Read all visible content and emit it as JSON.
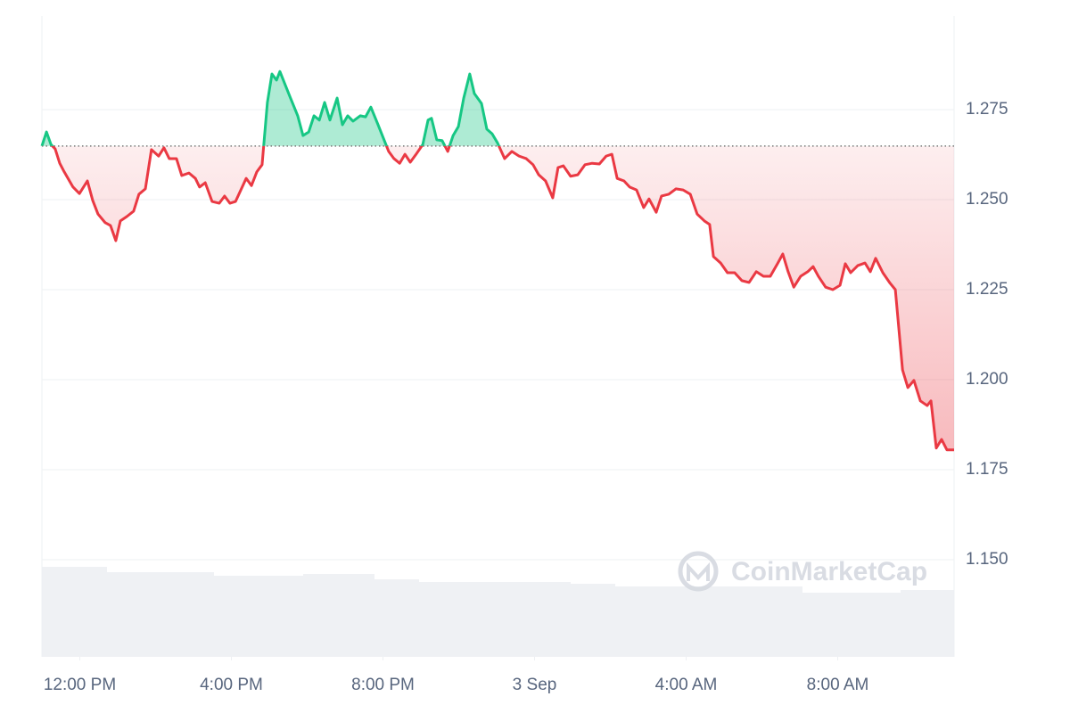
{
  "chart_data": {
    "type": "line",
    "watermark": "CoinMarketCap",
    "x": [
      11.0,
      11.12,
      11.24,
      11.35,
      11.47,
      11.59,
      11.82,
      11.99,
      12.2,
      12.34,
      12.48,
      12.67,
      12.81,
      12.95,
      13.07,
      13.24,
      13.42,
      13.56,
      13.73,
      13.89,
      14.08,
      14.22,
      14.36,
      14.55,
      14.69,
      14.88,
      15.05,
      15.16,
      15.31,
      15.49,
      15.68,
      15.82,
      15.96,
      16.11,
      16.25,
      16.39,
      16.53,
      16.67,
      16.81,
      16.95,
      17.07,
      17.19,
      17.28,
      17.42,
      17.56,
      17.75,
      17.89,
      18.04,
      18.18,
      18.32,
      18.46,
      18.6,
      18.79,
      18.93,
      19.07,
      19.21,
      19.4,
      19.54,
      19.68,
      19.87,
      20.01,
      20.15,
      20.29,
      20.44,
      20.58,
      20.72,
      20.86,
      21.05,
      21.19,
      21.28,
      21.42,
      21.56,
      21.71,
      21.85,
      21.99,
      22.13,
      22.29,
      22.41,
      22.6,
      22.74,
      22.88,
      23.02,
      23.21,
      23.4,
      23.59,
      23.78,
      23.96,
      24.11,
      24.29,
      24.48,
      24.62,
      24.76,
      24.95,
      25.14,
      25.33,
      25.52,
      25.71,
      25.89,
      26.04,
      26.18,
      26.36,
      26.51,
      26.69,
      26.88,
      27.02,
      27.21,
      27.35,
      27.54,
      27.73,
      27.92,
      28.11,
      28.29,
      28.48,
      28.62,
      28.72,
      28.91,
      29.09,
      29.28,
      29.47,
      29.66,
      29.85,
      30.04,
      30.22,
      30.41,
      30.55,
      30.69,
      30.84,
      31.02,
      31.21,
      31.35,
      31.49,
      31.68,
      31.87,
      32.06,
      32.2,
      32.34,
      32.53,
      32.72,
      32.86,
      33.0,
      33.19,
      33.38,
      33.52,
      33.71,
      33.85,
      34.01,
      34.18,
      34.36,
      34.46,
      34.6,
      34.74,
      34.88,
      35.07
    ],
    "values": [
      1.2649,
      1.2688,
      1.2653,
      1.2641,
      1.2601,
      1.2577,
      1.2535,
      1.2517,
      1.2552,
      1.2498,
      1.246,
      1.2436,
      1.2428,
      1.2386,
      1.2441,
      1.2453,
      1.2468,
      1.2515,
      1.253,
      1.2639,
      1.2621,
      1.2644,
      1.2614,
      1.2614,
      1.2567,
      1.2574,
      1.2559,
      1.2535,
      1.2547,
      1.2495,
      1.249,
      1.251,
      1.249,
      1.2495,
      1.2527,
      1.2559,
      1.2539,
      1.2577,
      1.2597,
      1.277,
      1.2849,
      1.2832,
      1.2856,
      1.2819,
      1.2782,
      1.2733,
      1.2678,
      1.2688,
      1.2733,
      1.2721,
      1.277,
      1.2721,
      1.2782,
      1.2708,
      1.2733,
      1.2718,
      1.2733,
      1.273,
      1.2757,
      1.2708,
      1.2671,
      1.2634,
      1.2614,
      1.2601,
      1.2626,
      1.2604,
      1.2624,
      1.2653,
      1.2721,
      1.2726,
      1.2666,
      1.2664,
      1.2634,
      1.2678,
      1.2703,
      1.2782,
      1.2849,
      1.2795,
      1.2767,
      1.2696,
      1.2683,
      1.2658,
      1.2614,
      1.2634,
      1.2621,
      1.2614,
      1.2597,
      1.2569,
      1.2552,
      1.2505,
      1.2589,
      1.2594,
      1.2565,
      1.2569,
      1.2597,
      1.2601,
      1.2599,
      1.2621,
      1.2626,
      1.2559,
      1.2552,
      1.2535,
      1.2527,
      1.2478,
      1.2502,
      1.2465,
      1.251,
      1.2515,
      1.253,
      1.2527,
      1.2515,
      1.246,
      1.2441,
      1.2431,
      1.2342,
      1.2324,
      1.2297,
      1.2297,
      1.2275,
      1.227,
      1.23,
      1.2287,
      1.2287,
      1.2322,
      1.2349,
      1.23,
      1.2257,
      1.2287,
      1.23,
      1.2314,
      1.2287,
      1.2257,
      1.225,
      1.2262,
      1.2322,
      1.2297,
      1.2317,
      1.2324,
      1.23,
      1.2337,
      1.2297,
      1.2268,
      1.225,
      1.2027,
      1.1978,
      1.1998,
      1.1941,
      1.1928,
      1.1941,
      1.181,
      1.1834,
      1.1805,
      1.1805
    ],
    "baseline": 1.2649,
    "color_up": "#16c784",
    "color_down": "#ea3943",
    "xlim": [
      11.0,
      35.07
    ],
    "xticks": [
      {
        "value": 12,
        "label": "12:00 PM"
      },
      {
        "value": 16,
        "label": "4:00 PM"
      },
      {
        "value": 20,
        "label": "8:00 PM"
      },
      {
        "value": 24,
        "label": "3 Sep"
      },
      {
        "value": 28,
        "label": "4:00 AM"
      },
      {
        "value": 32,
        "label": "8:00 AM"
      }
    ],
    "ylim": [
      1.123,
      1.301
    ],
    "yticks": [
      {
        "value": 1.15,
        "label": "1.150"
      },
      1.175,
      {
        "value": 1.2,
        "label": "1.200"
      },
      1.225,
      {
        "value": 1.25,
        "label": "1.250"
      },
      1.275
    ],
    "grid": true
  }
}
